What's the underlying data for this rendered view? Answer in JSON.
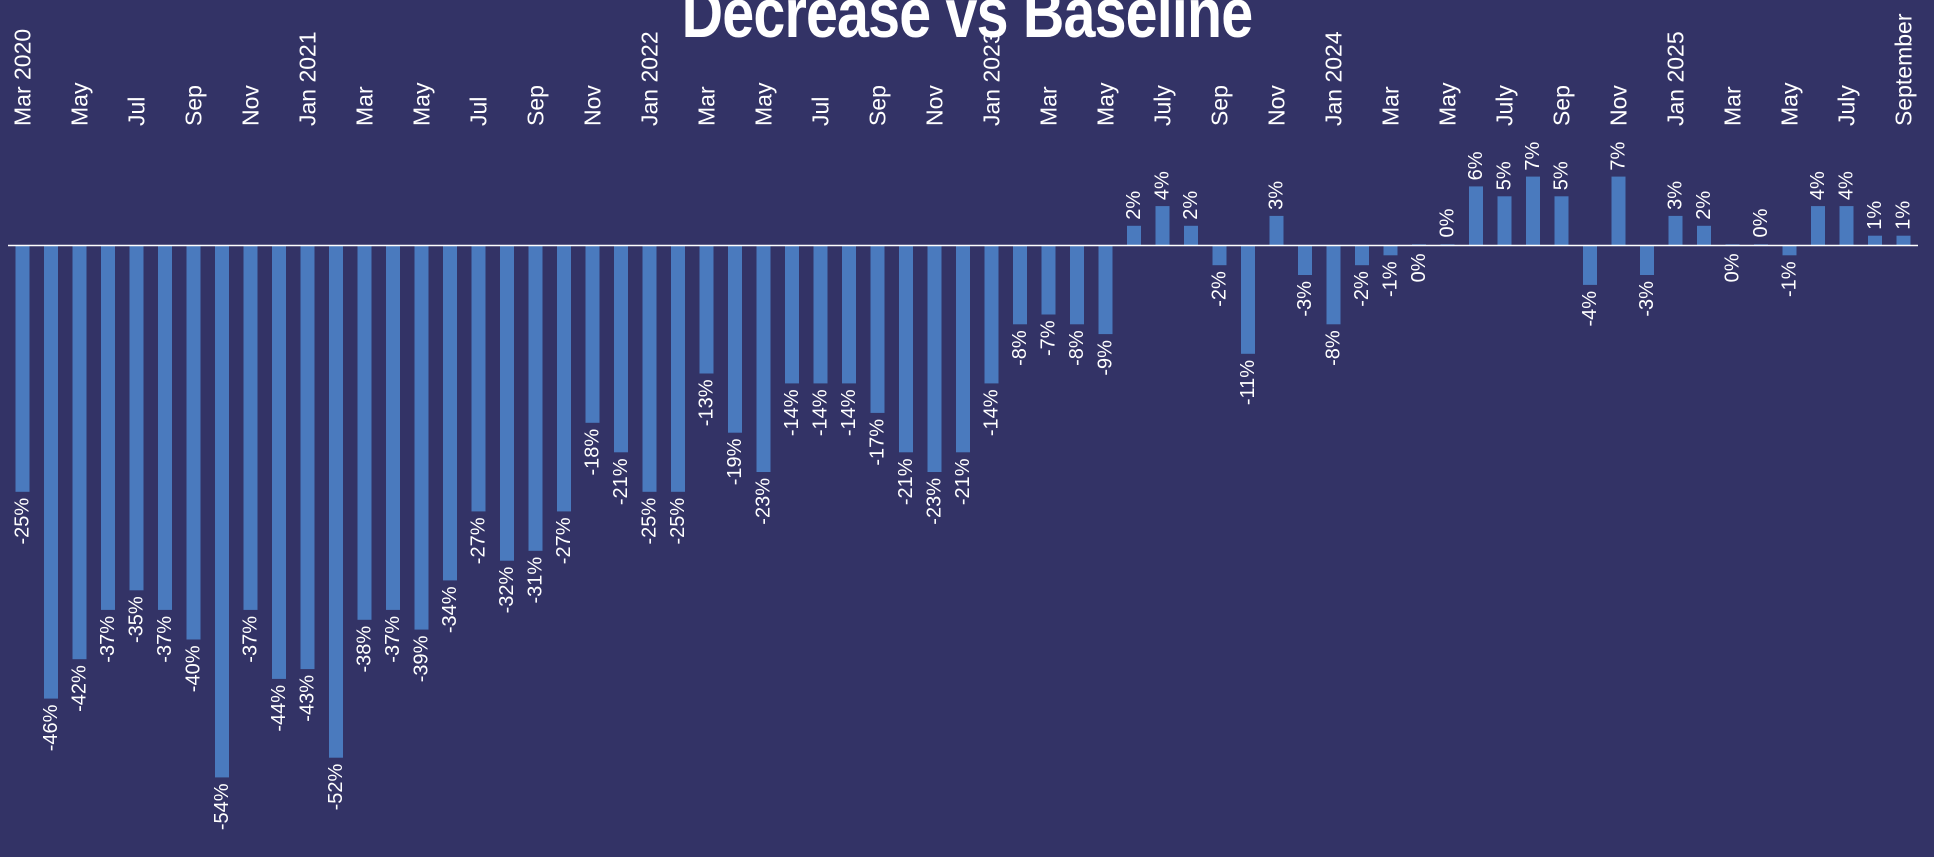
{
  "chart_data": {
    "type": "bar",
    "title": "Decrease vs Baseline",
    "bar_color": "#4A7ABE",
    "background_color": "#333366",
    "axis_line_color": "#FFFFFF",
    "label_color": "#FFFFFF",
    "grid": false,
    "legend": "none",
    "ylim": [
      -54,
      7
    ],
    "categories": [
      "Mar 2020",
      "",
      "May",
      "",
      "Jul",
      "",
      "Sep",
      "",
      "Nov",
      "",
      "Jan 2021",
      "",
      "Mar",
      "",
      "May",
      "",
      "Jul",
      "",
      "Sep",
      "",
      "Nov",
      "",
      "Jan 2022",
      "",
      "Mar",
      "",
      "May",
      "",
      "Jul",
      "",
      "Sep",
      "",
      "Nov",
      "",
      "Jan 2023",
      "",
      "Mar",
      "",
      "May",
      "",
      "July",
      "",
      "Sep",
      "",
      "Nov",
      "",
      "Jan 2024",
      "",
      "Mar",
      "",
      "May",
      "",
      "July",
      "",
      "Sep",
      "",
      "Nov",
      "",
      "Jan 2025",
      "",
      "Mar",
      "",
      "May",
      "",
      "July",
      "",
      "September"
    ],
    "values": [
      -25,
      -46,
      -42,
      -37,
      -35,
      -37,
      -40,
      -54,
      -37,
      -44,
      -43,
      -52,
      -38,
      -37,
      -39,
      -34,
      -27,
      -32,
      -31,
      -27,
      -18,
      -21,
      -25,
      -25,
      -13,
      -19,
      -23,
      -14,
      -14,
      -14,
      -17,
      -21,
      -23,
      -21,
      -14,
      -8,
      -7,
      -8,
      -9,
      2,
      4,
      2,
      -2,
      -11,
      3,
      -3,
      -8,
      -2,
      -1,
      0,
      0,
      6,
      5,
      7,
      5,
      -4,
      7,
      -3,
      3,
      2,
      0,
      0,
      -1,
      4,
      4,
      1,
      1
    ],
    "data_labels": [
      "-25%",
      "-46%",
      "-42%",
      "-37%",
      "-35%",
      "-37%",
      "-40%",
      "-54%",
      "-37%",
      "-44%",
      "-43%",
      "-52%",
      "-38%",
      "-37%",
      "-39%",
      "-34%",
      "-27%",
      "-32%",
      "-31%",
      "-27%",
      "-18%",
      "-21%",
      "-25%",
      "-25%",
      "-13%",
      "-19%",
      "-23%",
      "-14%",
      "-14%",
      "-14%",
      "-17%",
      "-21%",
      "-23%",
      "-21%",
      "-14%",
      "-8%",
      "-7%",
      "-8%",
      "-9%",
      "2%",
      "4%",
      "2%",
      "-2%",
      "-11%",
      "3%",
      "-3%",
      "-8%",
      "-2%",
      "-1%",
      "0%",
      "0%",
      "6%",
      "5%",
      "7%",
      "5%",
      "-4%",
      "7%",
      "-3%",
      "3%",
      "2%",
      "0%",
      "0%",
      "-1%",
      "4%",
      "4%",
      "1%",
      "1%"
    ]
  }
}
